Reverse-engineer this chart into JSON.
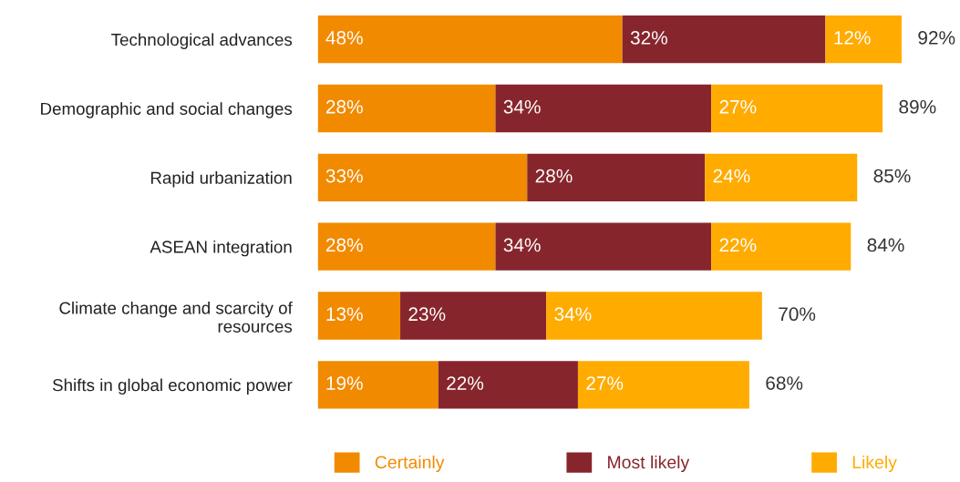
{
  "chart_data": {
    "type": "bar",
    "orientation": "horizontal",
    "stacked": true,
    "categories": [
      "Technological advances",
      "Demographic and social changes",
      "Rapid urbanization",
      "ASEAN integration",
      "Climate change and scarcity of\nresources",
      "Shifts in global economic power"
    ],
    "series": [
      {
        "name": "Certainly",
        "color": "#f28a00",
        "values": [
          48,
          28,
          33,
          28,
          13,
          19
        ],
        "value_labels": [
          "48%",
          "28%",
          "33%",
          "28%",
          "13%",
          "19%"
        ]
      },
      {
        "name": "Most likely",
        "color": "#86262c",
        "values": [
          32,
          34,
          28,
          34,
          23,
          22
        ],
        "value_labels": [
          "32%",
          "34%",
          "28%",
          "34%",
          "23%",
          "22%"
        ]
      },
      {
        "name": "Likely",
        "color": "#ffab00",
        "values": [
          12,
          27,
          24,
          22,
          34,
          27
        ],
        "value_labels": [
          "12%",
          "27%",
          "24%",
          "22%",
          "34%",
          "27%"
        ]
      }
    ],
    "totals": [
      "92%",
      "89%",
      "85%",
      "84%",
      "70%",
      "68%"
    ],
    "tick_labels": "y",
    "grid": false,
    "legend": "bottom"
  }
}
